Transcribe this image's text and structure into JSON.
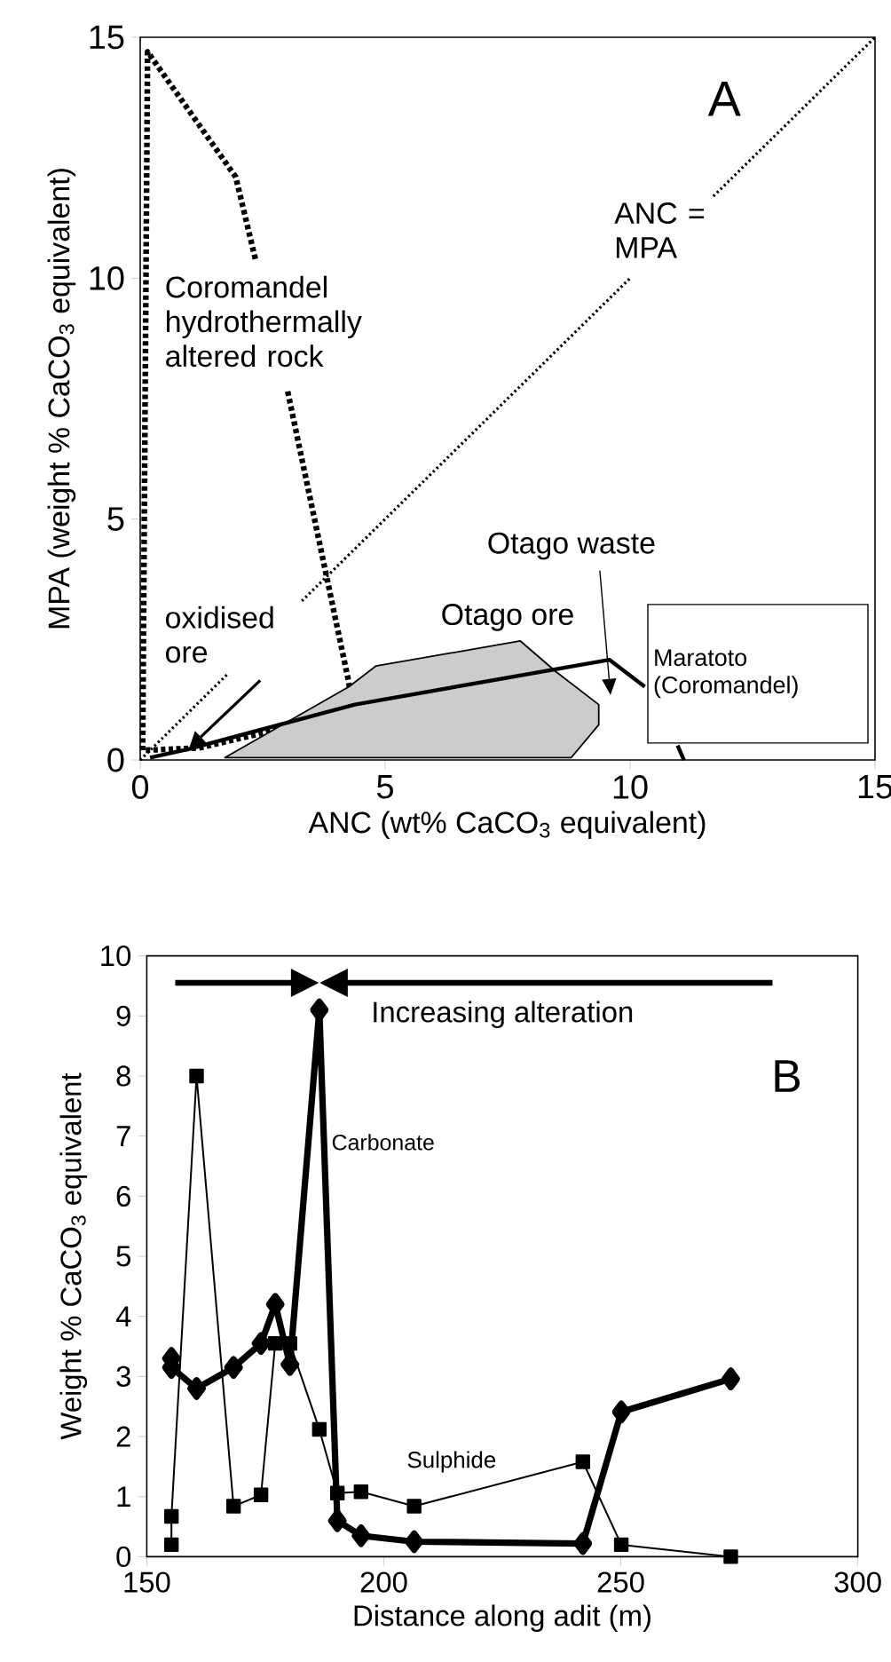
{
  "chart_data": [
    {
      "type": "line",
      "xlabel": "ANC (wt% CaCO$_{3}$ equivalent)",
      "ylabel": "MPA (weight % CaCO$_{3}$ equivalent)",
      "xlim": [
        0,
        15
      ],
      "ylim": [
        0,
        15
      ],
      "xticks": [
        0,
        5,
        10,
        15
      ],
      "yticks": [
        0,
        5,
        10,
        15
      ],
      "marker": "none",
      "series": [
        {
          "color": "#000000",
          "line_style": "dotted",
          "x": [
            0,
            1.8,
            2.5,
            3.3,
            10.0,
            10.8,
            11.7,
            15
          ],
          "values": [
            0,
            1.8,
            null,
            3.3,
            10.0,
            null,
            11.7,
            15
          ]
        },
        {
          "color": "#000000",
          "line_style": "dashed",
          "x": [
            2.35,
            1.95,
            0.15,
            0.05,
            1.2,
            4.35,
            4.25,
            3.0
          ],
          "values": [
            10.4,
            12.1,
            14.7,
            0.2,
            0.25,
            1.0,
            1.65,
            7.7
          ]
        },
        {
          "type": "area",
          "color": "#000000",
          "x": [
            1.73,
            4.26,
            4.81,
            7.76,
            8.49,
            9.36,
            9.36,
            8.8
          ],
          "values": [
            0.05,
            1.52,
            1.95,
            2.47,
            1.83,
            1.15,
            0.73,
            0.05
          ]
        },
        {
          "color": "#000000",
          "line_style": "solid",
          "x": [
            0.2,
            1.0,
            4.38,
            9.58,
            10.3,
            10.6,
            10.97,
            11.1
          ],
          "values": [
            0.05,
            0.23,
            1.15,
            2.08,
            1.52,
            null,
            0.3,
            0
          ]
        }
      ],
      "annotations": [
        "A",
        "ANC = MPA",
        "Coromandel hydrothermally altered rock",
        {
          "text": "oxidised ore",
          "x": 1.0,
          "y": 0.25
        },
        "Otago ore",
        "Otago waste",
        "Maratoto (Coromandel)"
      ]
    },
    {
      "type": "line",
      "xlabel": "Distance along adit (m)",
      "ylabel": "Weight % CaCO$_{3}$ equivalent",
      "xlim": [
        150,
        300
      ],
      "ylim": [
        0,
        10
      ],
      "xticks": [
        150,
        200,
        250,
        300
      ],
      "yticks": [
        0,
        1,
        2,
        3,
        4,
        5,
        6,
        7,
        8,
        9,
        10
      ],
      "series": [
        {
          "color": "#000000",
          "marker": "diamond",
          "line_style": "solid",
          "x": [
            155.2,
            155.2,
            160.5,
            168.3,
            174.1,
            177.1,
            180.2,
            186.4,
            190.2,
            195.2,
            206.4,
            242.0,
            250.1,
            273.2
          ],
          "values": [
            3.3,
            3.15,
            2.8,
            3.15,
            3.55,
            4.2,
            3.2,
            9.1,
            0.6,
            0.35,
            0.25,
            0.22,
            2.41,
            2.96
          ]
        },
        {
          "color": "#000000",
          "marker": "square",
          "line_style": "solid",
          "x": [
            155.2,
            155.2,
            160.5,
            168.3,
            174.1,
            177.1,
            180.2,
            186.4,
            190.2,
            195.2,
            206.4,
            242.0,
            250.1,
            273.2
          ],
          "values": [
            0.2,
            0.67,
            8.0,
            0.84,
            1.03,
            3.55,
            3.55,
            2.12,
            1.06,
            1.08,
            0.84,
            1.58,
            0.2,
            0.0
          ]
        }
      ],
      "annotations": [
        "Increasing alteration",
        "B",
        {
          "text": "Carbonate",
          "x": 188.9,
          "y": 6.9
        },
        "Sulphide"
      ]
    }
  ]
}
